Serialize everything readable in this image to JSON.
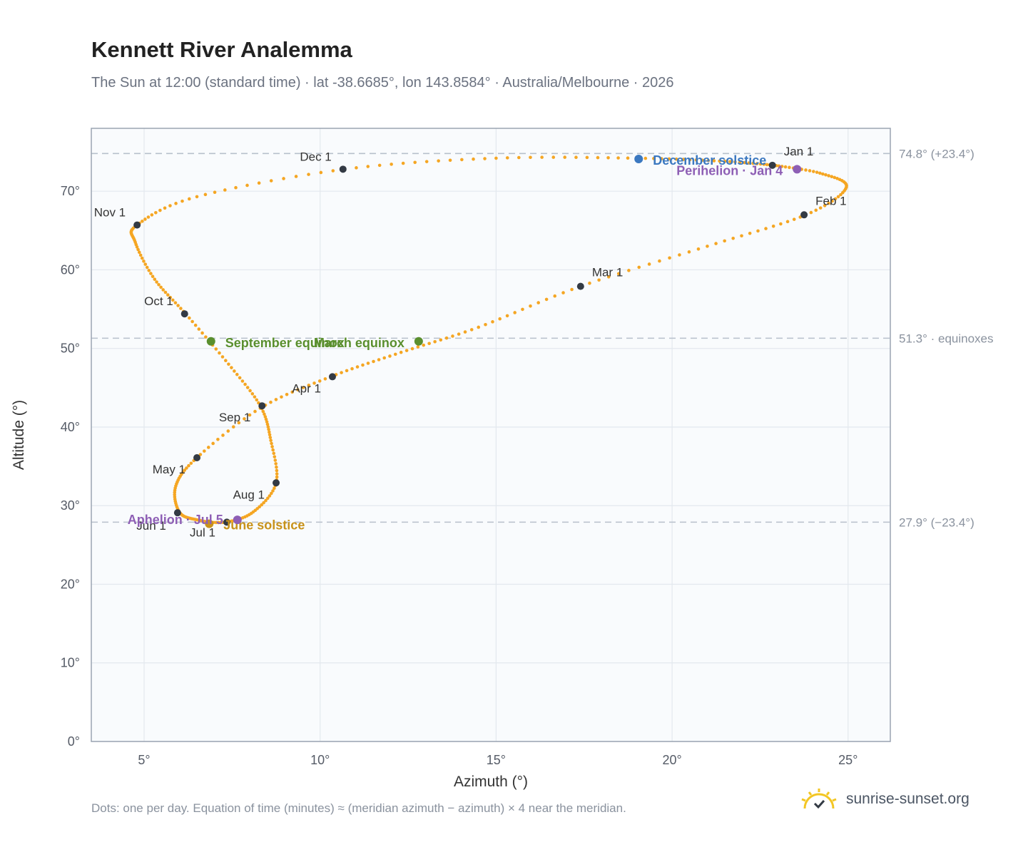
{
  "header": {
    "title": "Kennett River Analemma",
    "subtitle": "The Sun at 12:00 (standard time) · lat -38.6685°, lon 143.8584° · Australia/Melbourne · 2026"
  },
  "footnote": "Dots: one per day. Equation of time (minutes) ≈ (meridian azimuth − azimuth) × 4 near the meridian.",
  "brand": {
    "name": "sunrise-sunset.org",
    "logo_icon": "sun-logo-icon"
  },
  "colors": {
    "path": "#f5a623",
    "date_marker": "#333a44",
    "equinox": "#5a8f2e",
    "december_solstice": "#3b78c0",
    "june_solstice": "#c8921a",
    "apsis": "#8e5fb5",
    "reference_line": "#b8c0cc",
    "plot_bg": "#f9fbfd",
    "grid": "#e3e8ee",
    "frame": "#9aa4b2"
  },
  "chart_data": {
    "type": "scatter",
    "xlabel": "Azimuth (°)",
    "ylabel": "Altitude (°)",
    "xlim": [
      3.5,
      26.2
    ],
    "ylim": [
      0,
      78
    ],
    "x_ticks": [
      {
        "value": 5,
        "label": "5°"
      },
      {
        "value": 10,
        "label": "10°"
      },
      {
        "value": 15,
        "label": "15°"
      },
      {
        "value": 20,
        "label": "20°"
      },
      {
        "value": 25,
        "label": "25°"
      }
    ],
    "y_ticks": [
      {
        "value": 0,
        "label": "0°"
      },
      {
        "value": 10,
        "label": "10°"
      },
      {
        "value": 20,
        "label": "20°"
      },
      {
        "value": 30,
        "label": "30°"
      },
      {
        "value": 40,
        "label": "40°"
      },
      {
        "value": 50,
        "label": "50°"
      },
      {
        "value": 60,
        "label": "60°"
      },
      {
        "value": 70,
        "label": "70°"
      }
    ],
    "grid": true,
    "reference_lines": [
      {
        "y": 74.8,
        "label": "74.8° (+23.4°)"
      },
      {
        "y": 51.3,
        "label": "51.3° · equinoxes"
      },
      {
        "y": 27.9,
        "label": "27.9° (−23.4°)"
      }
    ],
    "path_anchors": [
      {
        "x": 22.9,
        "y": 73.3
      },
      {
        "x": 24.2,
        "y": 72.3
      },
      {
        "x": 24.95,
        "y": 70.5
      },
      {
        "x": 23.8,
        "y": 67.0
      },
      {
        "x": 21.0,
        "y": 63.0
      },
      {
        "x": 17.4,
        "y": 57.9
      },
      {
        "x": 14.5,
        "y": 52.7
      },
      {
        "x": 12.3,
        "y": 49.5
      },
      {
        "x": 10.3,
        "y": 46.4
      },
      {
        "x": 8.3,
        "y": 42.4
      },
      {
        "x": 6.5,
        "y": 36.1
      },
      {
        "x": 5.9,
        "y": 32.5
      },
      {
        "x": 6.0,
        "y": 29.2
      },
      {
        "x": 6.5,
        "y": 28.2
      },
      {
        "x": 7.3,
        "y": 27.9
      },
      {
        "x": 8.1,
        "y": 29.2
      },
      {
        "x": 8.75,
        "y": 32.9
      },
      {
        "x": 8.6,
        "y": 38.3
      },
      {
        "x": 8.3,
        "y": 42.7
      },
      {
        "x": 7.4,
        "y": 48.0
      },
      {
        "x": 6.2,
        "y": 54.3
      },
      {
        "x": 5.3,
        "y": 58.8
      },
      {
        "x": 4.75,
        "y": 63.5
      },
      {
        "x": 4.8,
        "y": 65.7
      },
      {
        "x": 6.5,
        "y": 69.3
      },
      {
        "x": 10.7,
        "y": 72.8
      },
      {
        "x": 15.0,
        "y": 74.2
      },
      {
        "x": 19.0,
        "y": 74.2
      },
      {
        "x": 21.5,
        "y": 73.8
      },
      {
        "x": 22.9,
        "y": 73.3
      }
    ],
    "month_markers": [
      {
        "label": "Jan 1",
        "x": 22.85,
        "y": 73.3
      },
      {
        "label": "Feb 1",
        "x": 23.75,
        "y": 67.0
      },
      {
        "label": "Mar 1",
        "x": 17.4,
        "y": 57.9
      },
      {
        "label": "Apr 1",
        "x": 10.35,
        "y": 46.4
      },
      {
        "label": "May 1",
        "x": 6.5,
        "y": 36.1
      },
      {
        "label": "Jun 1",
        "x": 5.95,
        "y": 29.1
      },
      {
        "label": "Jul 1",
        "x": 7.35,
        "y": 27.9
      },
      {
        "label": "Aug 1",
        "x": 8.75,
        "y": 32.9
      },
      {
        "label": "Sep 1",
        "x": 8.35,
        "y": 42.7
      },
      {
        "label": "Oct 1",
        "x": 6.15,
        "y": 54.4
      },
      {
        "label": "Nov 1",
        "x": 4.8,
        "y": 65.7
      },
      {
        "label": "Dec 1",
        "x": 10.65,
        "y": 72.8
      }
    ],
    "events": [
      {
        "label": "December solstice",
        "x": 19.05,
        "y": 74.1,
        "kind": "december_solstice"
      },
      {
        "label": "Perihelion · Jan 4",
        "x": 23.55,
        "y": 72.8,
        "kind": "apsis"
      },
      {
        "label": "March equinox",
        "x": 12.8,
        "y": 50.9,
        "kind": "equinox"
      },
      {
        "label": "September equinox",
        "x": 6.9,
        "y": 50.9,
        "kind": "equinox"
      },
      {
        "label": "June solstice",
        "x": 6.85,
        "y": 27.7,
        "kind": "june_solstice"
      },
      {
        "label": "Aphelion · Jul 5",
        "x": 7.65,
        "y": 28.2,
        "kind": "apsis"
      }
    ]
  }
}
